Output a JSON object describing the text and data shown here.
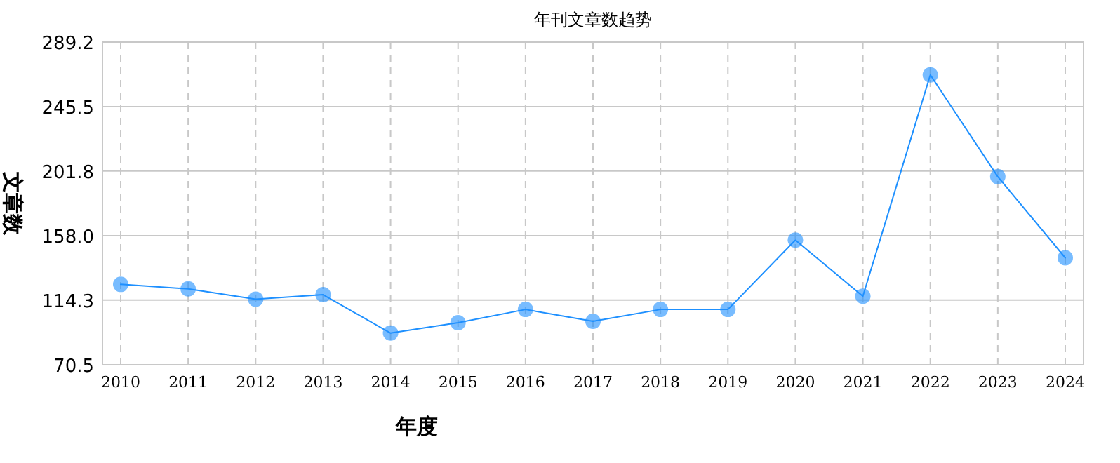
{
  "chart_data": {
    "type": "line",
    "title": "年刊文章数趋势",
    "xlabel": "年度",
    "ylabel": "文章数",
    "categories": [
      "2010",
      "2011",
      "2012",
      "2013",
      "2014",
      "2015",
      "2016",
      "2017",
      "2018",
      "2019",
      "2020",
      "2021",
      "2022",
      "2023",
      "2024"
    ],
    "series": [
      {
        "color": "#1e90ff",
        "values": [
          125,
          122,
          115,
          118,
          92,
          99,
          108,
          100,
          108,
          108,
          155,
          117,
          267,
          198,
          143
        ]
      }
    ],
    "ylim": [
      70.5,
      289.2
    ],
    "yticks": [
      {
        "value": 70.5,
        "label": "70.5"
      },
      {
        "value": 114.3,
        "label": "114.3"
      },
      {
        "value": 158.0,
        "label": "158.0"
      },
      {
        "value": 201.8,
        "label": "201.8"
      },
      {
        "value": 245.5,
        "label": "245.5"
      },
      {
        "value": 289.2,
        "label": "289.2"
      }
    ],
    "grid": true,
    "marker": "circle",
    "line_style": "solid"
  }
}
